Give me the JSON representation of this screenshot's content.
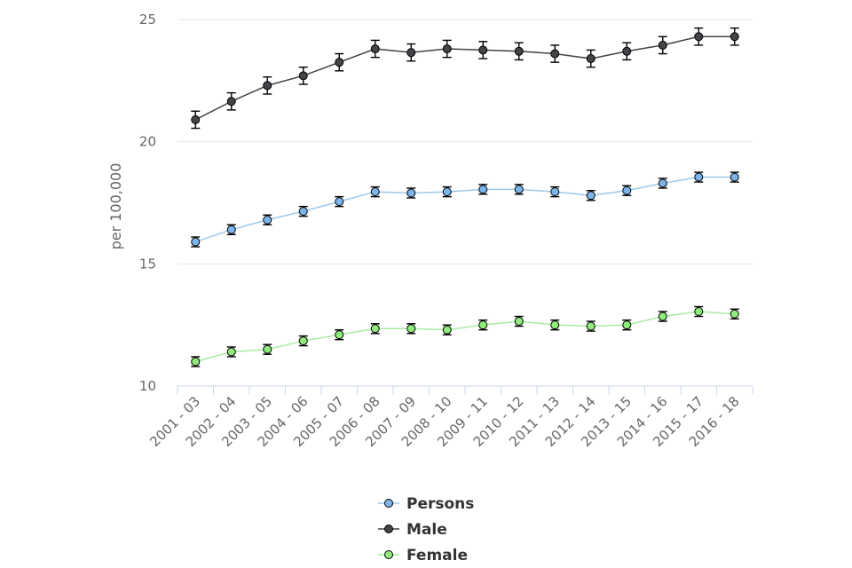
{
  "chart_data": {
    "type": "line",
    "ylabel": "per 100,000",
    "xlabel": "",
    "ylim": [
      10,
      25
    ],
    "yticks": [
      10,
      15,
      20,
      25
    ],
    "grid": true,
    "legend_position": "bottom",
    "categories": [
      "2001 - 03",
      "2002 - 04",
      "2003 - 05",
      "2004 - 06",
      "2005 - 07",
      "2006 - 08",
      "2007 - 09",
      "2008 - 10",
      "2009 - 11",
      "2010 - 12",
      "2011 - 13",
      "2012 - 14",
      "2013 - 15",
      "2014 - 16",
      "2015 - 17",
      "2016 - 18"
    ],
    "series": [
      {
        "name": "Persons",
        "line_color": "#9cc8ea",
        "marker_color": "#7cb5ec",
        "values": [
          15.9,
          16.4,
          16.8,
          17.15,
          17.55,
          17.95,
          17.9,
          17.95,
          18.05,
          18.05,
          17.95,
          17.8,
          18.0,
          18.3,
          18.55,
          18.55
        ],
        "lower": [
          15.7,
          16.2,
          16.6,
          16.95,
          17.35,
          17.75,
          17.7,
          17.75,
          17.85,
          17.85,
          17.75,
          17.6,
          17.8,
          18.1,
          18.35,
          18.35
        ],
        "upper": [
          16.1,
          16.6,
          17.0,
          17.35,
          17.75,
          18.15,
          18.1,
          18.15,
          18.25,
          18.25,
          18.15,
          18.0,
          18.2,
          18.5,
          18.75,
          18.75
        ]
      },
      {
        "name": "Male",
        "line_color": "#434348",
        "marker_color": "#434348",
        "values": [
          20.9,
          21.65,
          22.3,
          22.7,
          23.25,
          23.8,
          23.65,
          23.8,
          23.75,
          23.7,
          23.6,
          23.4,
          23.7,
          23.95,
          24.3,
          24.3
        ],
        "lower": [
          20.55,
          21.3,
          21.95,
          22.35,
          22.9,
          23.45,
          23.3,
          23.45,
          23.4,
          23.35,
          23.25,
          23.05,
          23.35,
          23.6,
          23.95,
          23.95
        ],
        "upper": [
          21.25,
          22.0,
          22.65,
          23.05,
          23.6,
          24.15,
          24.0,
          24.15,
          24.1,
          24.05,
          23.95,
          23.75,
          24.05,
          24.3,
          24.65,
          24.65
        ]
      },
      {
        "name": "Female",
        "line_color": "#a6eda0",
        "marker_color": "#90ed7d",
        "values": [
          11.0,
          11.4,
          11.5,
          11.85,
          12.1,
          12.35,
          12.35,
          12.3,
          12.5,
          12.65,
          12.5,
          12.45,
          12.5,
          12.85,
          13.05,
          12.95
        ],
        "lower": [
          10.8,
          11.2,
          11.3,
          11.65,
          11.9,
          12.15,
          12.15,
          12.1,
          12.3,
          12.45,
          12.3,
          12.25,
          12.3,
          12.65,
          12.85,
          12.75
        ],
        "upper": [
          11.2,
          11.6,
          11.7,
          12.05,
          12.3,
          12.55,
          12.55,
          12.5,
          12.7,
          12.85,
          12.7,
          12.65,
          12.7,
          13.05,
          13.25,
          13.15
        ]
      }
    ]
  }
}
